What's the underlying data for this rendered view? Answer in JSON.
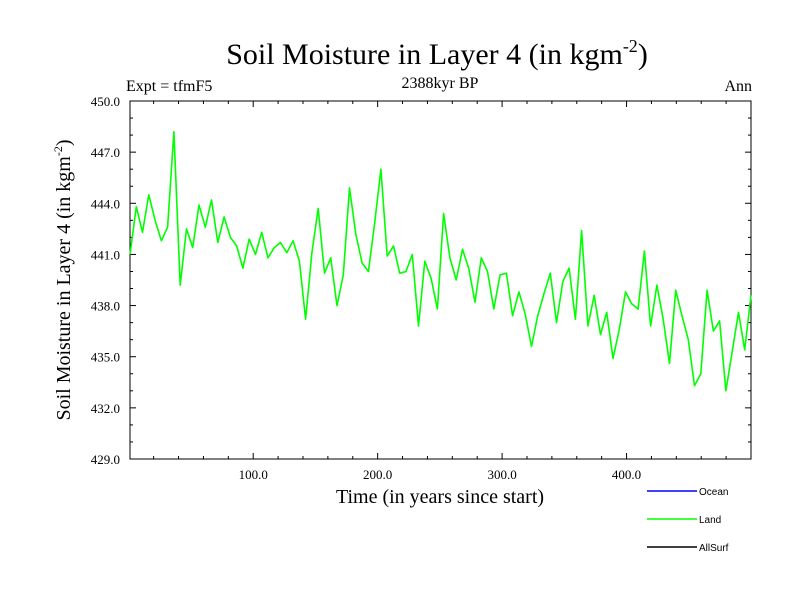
{
  "chart_data": {
    "type": "line",
    "title": "Soil Moisture in Layer 4 (in kgm",
    "title_sup": "-2",
    "title_close": ")",
    "subtitle_left": "Expt = tfmF5",
    "subtitle_center": "2388kyr BP",
    "subtitle_right": "Ann",
    "xlabel": "Time (in years since start)",
    "ylabel": "Soil Moisture in Layer 4 (in kgm",
    "ylabel_sup": "-2",
    "ylabel_close": ")",
    "xlim": [
      1,
      500
    ],
    "ylim": [
      429,
      450
    ],
    "x_ticks": [
      100,
      200,
      300,
      400
    ],
    "x_tick_labels": [
      "100.0",
      "200.0",
      "300.0",
      "400.0"
    ],
    "y_ticks": [
      429,
      432,
      435,
      438,
      441,
      444,
      447,
      450
    ],
    "y_tick_labels": [
      "429.0",
      "432.0",
      "435.0",
      "438.0",
      "441.0",
      "444.0",
      "447.0",
      "450.0"
    ],
    "legend": [
      {
        "name": "Ocean",
        "color": "#0000ff"
      },
      {
        "name": "Land",
        "color": "#00ff00"
      },
      {
        "name": "AllSurf",
        "color": "#000000"
      }
    ],
    "series": [
      {
        "name": "Land",
        "color": "#00ff00",
        "x_start": 1,
        "x_step": 5,
        "values": [
          441.0,
          443.8,
          442.3,
          444.5,
          443.0,
          441.8,
          442.6,
          448.2,
          439.2,
          442.5,
          441.4,
          443.9,
          442.6,
          444.2,
          441.7,
          443.2,
          442.0,
          441.5,
          440.2,
          441.9,
          441.0,
          442.3,
          440.8,
          441.4,
          441.7,
          441.1,
          441.8,
          440.6,
          437.2,
          441.1,
          443.7,
          439.9,
          440.8,
          438.0,
          439.8,
          444.9,
          442.2,
          440.5,
          440.0,
          442.8,
          446.0,
          440.9,
          441.5,
          439.9,
          440.0,
          441.0,
          436.8,
          440.6,
          439.6,
          437.8,
          443.4,
          440.8,
          439.5,
          441.3,
          440.2,
          438.2,
          440.8,
          440.0,
          437.8,
          439.8,
          439.9,
          437.4,
          438.8,
          437.5,
          435.6,
          437.4,
          438.7,
          439.9,
          437.0,
          439.4,
          440.2,
          437.2,
          442.4,
          436.8,
          438.6,
          436.3,
          437.6,
          434.9,
          436.6,
          438.8,
          438.1,
          437.8,
          441.2,
          436.8,
          439.2,
          437.2,
          434.6,
          438.9,
          437.4,
          436.0,
          433.3,
          434.0,
          438.9,
          436.5,
          437.1,
          433.0,
          435.3,
          437.6,
          435.4,
          438.6
        ]
      }
    ]
  }
}
